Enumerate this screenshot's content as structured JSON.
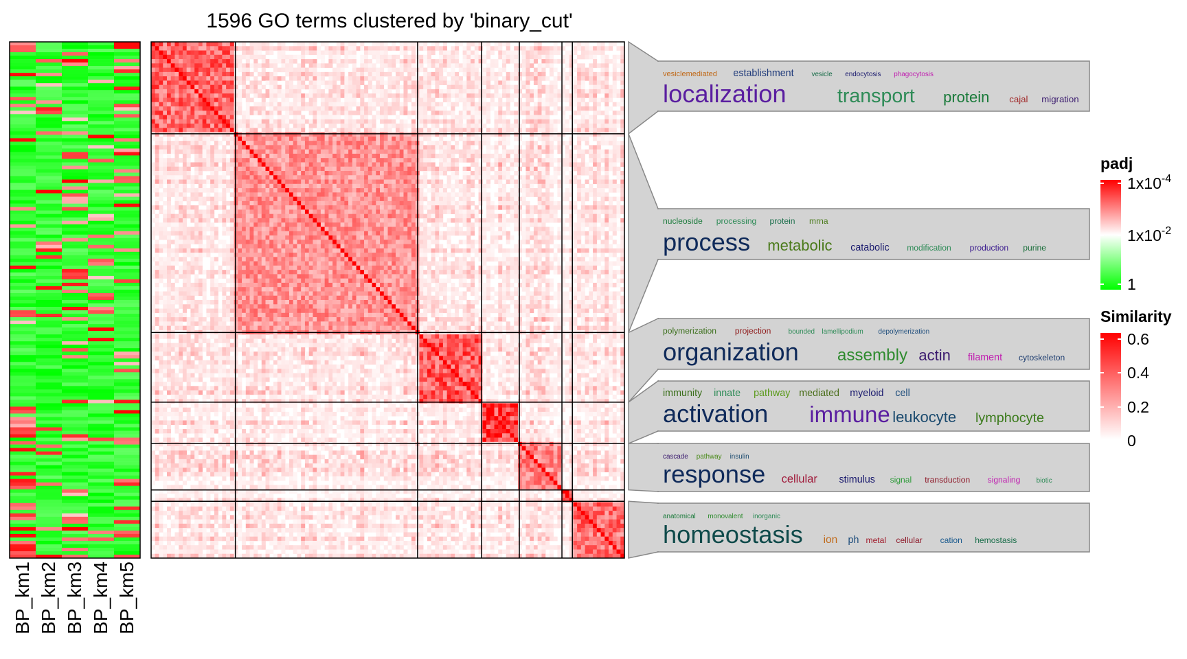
{
  "chart_data": {
    "type": "heatmap",
    "title": "1596 GO terms clustered by 'binary_cut'",
    "term_count": 1596,
    "clustering_method": "binary_cut",
    "annotation_heatmap": {
      "columns": [
        "BP_km1",
        "BP_km2",
        "BP_km3",
        "BP_km4",
        "BP_km5"
      ],
      "color_scale": "padj"
    },
    "clusters": [
      {
        "fraction": 0.178,
        "mean_similarity": 0.42,
        "keywords": [
          {
            "word": "vesiclemediated",
            "weight": 1,
            "color": "#c06a1a"
          },
          {
            "word": "establishment",
            "weight": 1.3,
            "color": "#1f3a7a"
          },
          {
            "word": "vesicle",
            "weight": 0.9,
            "color": "#1a6e4a"
          },
          {
            "word": "endocytosis",
            "weight": 0.9,
            "color": "#1a1a6e"
          },
          {
            "word": "phagocytosis",
            "weight": 0.9,
            "color": "#c020b0"
          },
          {
            "word": "localization",
            "weight": 3.3,
            "color": "#5a1ea0"
          },
          {
            "word": "transport",
            "weight": 2.6,
            "color": "#2e8b57"
          },
          {
            "word": "protein",
            "weight": 2.0,
            "color": "#1a7a3a"
          },
          {
            "word": "cajal",
            "weight": 1.2,
            "color": "#a02828"
          },
          {
            "word": "migration",
            "weight": 1.2,
            "color": "#3a1a6e"
          }
        ]
      },
      {
        "fraction": 0.385,
        "mean_similarity": 0.3,
        "keywords": [
          {
            "word": "nucleoside",
            "weight": 1.1,
            "color": "#1a7a3a"
          },
          {
            "word": "processing",
            "weight": 1.1,
            "color": "#2e8b57"
          },
          {
            "word": "protein",
            "weight": 1.1,
            "color": "#1a6e4a"
          },
          {
            "word": "mrna",
            "weight": 1.1,
            "color": "#4a7a1a"
          },
          {
            "word": "process",
            "weight": 3.3,
            "color": "#0f2a5a"
          },
          {
            "word": "metabolic",
            "weight": 2.0,
            "color": "#4a7a1a"
          },
          {
            "word": "catabolic",
            "weight": 1.3,
            "color": "#1a1a6e"
          },
          {
            "word": "modification",
            "weight": 1.1,
            "color": "#2e8b57"
          },
          {
            "word": "production",
            "weight": 1.1,
            "color": "#3a1a8e"
          },
          {
            "word": "purine",
            "weight": 1.1,
            "color": "#1a6e3a"
          }
        ]
      },
      {
        "fraction": 0.135,
        "mean_similarity": 0.45,
        "keywords": [
          {
            "word": "polymerization",
            "weight": 1.1,
            "color": "#3a6e1a"
          },
          {
            "word": "projection",
            "weight": 1.1,
            "color": "#8e1a1a"
          },
          {
            "word": "bounded",
            "weight": 0.9,
            "color": "#2e8b57"
          },
          {
            "word": "lamellipodium",
            "weight": 0.9,
            "color": "#2e8b57"
          },
          {
            "word": "depolymerization",
            "weight": 0.9,
            "color": "#1a4a7a"
          },
          {
            "word": "organization",
            "weight": 3.3,
            "color": "#0f2a5a"
          },
          {
            "word": "assembly",
            "weight": 2.2,
            "color": "#2e8b2e"
          },
          {
            "word": "actin",
            "weight": 2.0,
            "color": "#3a1a6e"
          },
          {
            "word": "filament",
            "weight": 1.3,
            "color": "#c020b0"
          },
          {
            "word": "cytoskeleton",
            "weight": 1.1,
            "color": "#1a3a6e"
          }
        ]
      },
      {
        "fraction": 0.08,
        "mean_similarity": 0.55,
        "keywords": [
          {
            "word": "immunity",
            "weight": 1.3,
            "color": "#3a6e1a"
          },
          {
            "word": "innate",
            "weight": 1.3,
            "color": "#2e8b57"
          },
          {
            "word": "pathway",
            "weight": 1.3,
            "color": "#5a9a1a"
          },
          {
            "word": "mediated",
            "weight": 1.3,
            "color": "#4a6e1a"
          },
          {
            "word": "myeloid",
            "weight": 1.3,
            "color": "#1a1a6e"
          },
          {
            "word": "cell",
            "weight": 1.3,
            "color": "#1a4a7a"
          },
          {
            "word": "activation",
            "weight": 3.3,
            "color": "#0f2a5a"
          },
          {
            "word": "immune",
            "weight": 3.0,
            "color": "#5a1ea0"
          },
          {
            "word": "leukocyte",
            "weight": 2.0,
            "color": "#1a4a6e"
          },
          {
            "word": "lymphocyte",
            "weight": 1.8,
            "color": "#3a7a1a"
          }
        ]
      },
      {
        "fraction": 0.09,
        "mean_similarity": 0.35,
        "keywords": [
          {
            "word": "cascade",
            "weight": 0.9,
            "color": "#3a1a6e"
          },
          {
            "word": "pathway",
            "weight": 0.9,
            "color": "#4a8a1a"
          },
          {
            "word": "insulin",
            "weight": 0.9,
            "color": "#1a4a6e"
          },
          {
            "word": "response",
            "weight": 3.3,
            "color": "#0f2a5a"
          },
          {
            "word": "cellular",
            "weight": 1.5,
            "color": "#a01a3a"
          },
          {
            "word": "stimulus",
            "weight": 1.3,
            "color": "#1a1a6e"
          },
          {
            "word": "signal",
            "weight": 1.1,
            "color": "#2e9b3a"
          },
          {
            "word": "transduction",
            "weight": 1.1,
            "color": "#8e1a2a"
          },
          {
            "word": "signaling",
            "weight": 1.1,
            "color": "#c020b0"
          },
          {
            "word": "biotic",
            "weight": 0.9,
            "color": "#2e8b57"
          }
        ]
      },
      {
        "fraction": 0.022,
        "mean_similarity": 0.6,
        "keywords": []
      },
      {
        "fraction": 0.11,
        "mean_similarity": 0.4,
        "keywords": [
          {
            "word": "anatomical",
            "weight": 0.9,
            "color": "#1a7a3a"
          },
          {
            "word": "monovalent",
            "weight": 0.9,
            "color": "#2e8b2e"
          },
          {
            "word": "inorganic",
            "weight": 0.9,
            "color": "#2e8b57"
          },
          {
            "word": "homeostasis",
            "weight": 3.3,
            "color": "#0f4a4a"
          },
          {
            "word": "ion",
            "weight": 1.4,
            "color": "#c06a1a"
          },
          {
            "word": "ph",
            "weight": 1.3,
            "color": "#1a4a7a"
          },
          {
            "word": "metal",
            "weight": 1.1,
            "color": "#a01a2a"
          },
          {
            "word": "cellular",
            "weight": 1.1,
            "color": "#8e1a2a"
          },
          {
            "word": "cation",
            "weight": 1.1,
            "color": "#1a5a8e"
          },
          {
            "word": "hemostasis",
            "weight": 1.1,
            "color": "#1a6e4a"
          }
        ]
      }
    ],
    "legends": [
      {
        "title": "padj",
        "labels": [
          "1x10",
          "1x10",
          "1"
        ],
        "superscripts": [
          "-4",
          "-2",
          ""
        ],
        "colors": [
          "#ff0000",
          "#ffffff",
          "#00ff00"
        ]
      },
      {
        "title": "Similarity",
        "labels": [
          "0.6",
          "0.4",
          "0.2",
          "0"
        ],
        "colors": [
          "#ff0000",
          "#ffffff"
        ]
      }
    ],
    "colors": {
      "high": "#ff0000",
      "mid": "#ffffff",
      "low": "#00ff00",
      "box_fill": "#d3d3d3",
      "box_stroke": "#888888"
    }
  }
}
